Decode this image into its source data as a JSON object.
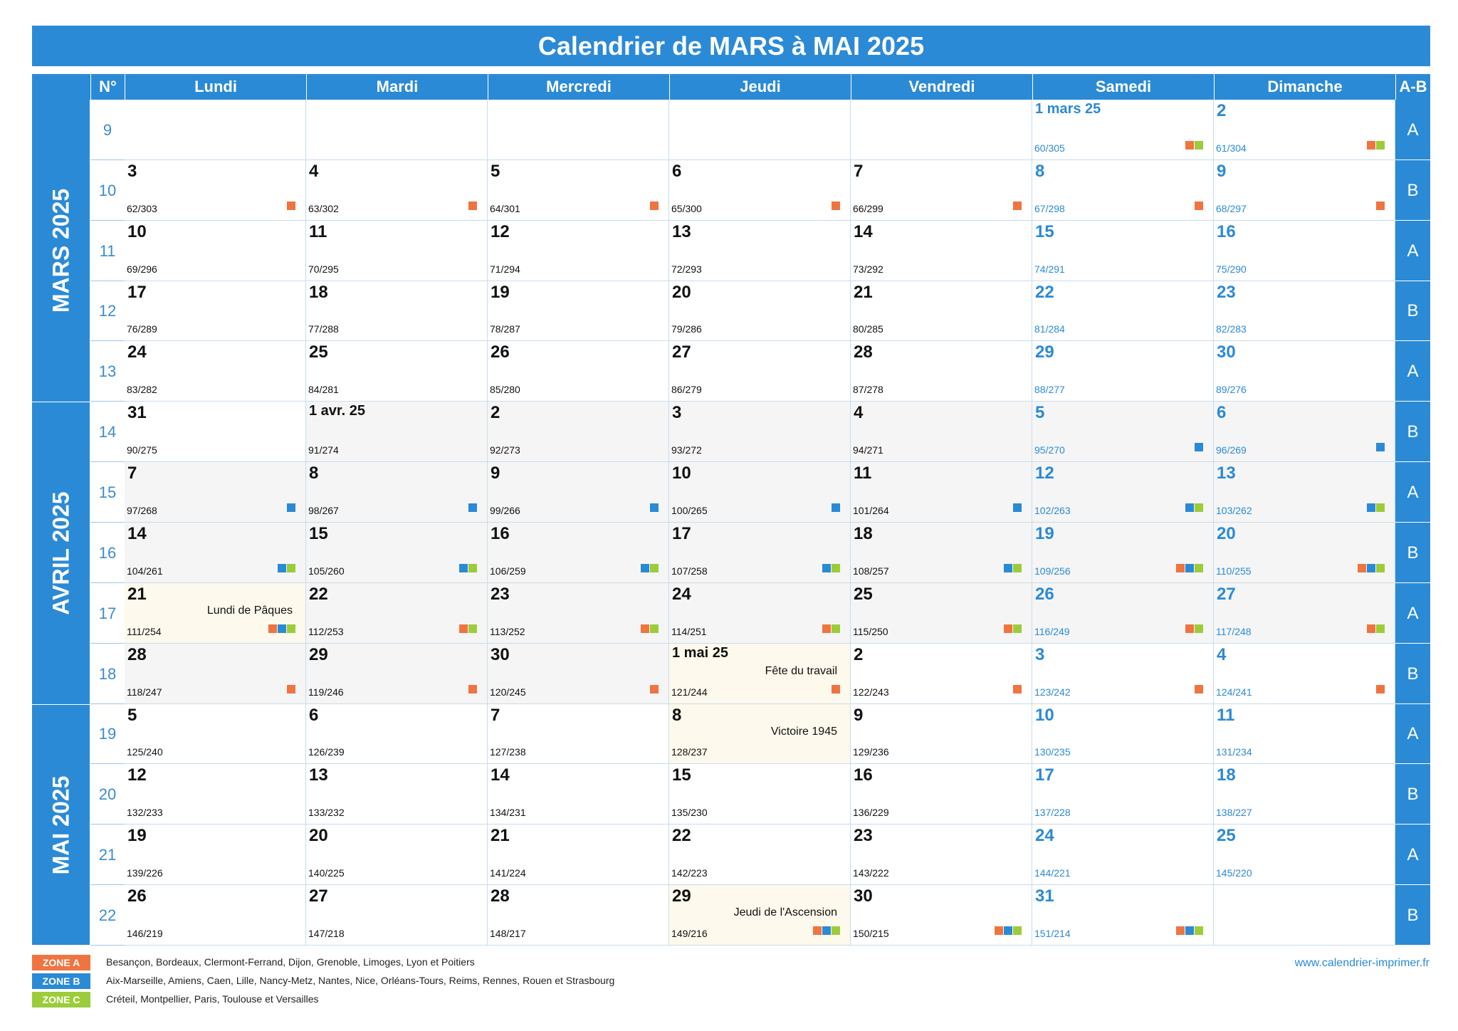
{
  "title": "Calendrier de MARS à MAI 2025",
  "headers": {
    "week": "N°",
    "days": [
      "Lundi",
      "Mardi",
      "Mercredi",
      "Jeudi",
      "Vendredi",
      "Samedi",
      "Dimanche"
    ],
    "ab": "A-B"
  },
  "months": [
    "MARS 2025",
    "AVRIL 2025",
    "MAI 2025"
  ],
  "colors": {
    "accent": "#2b8ad6",
    "zone_a": "#ef7440",
    "zone_b": "#2b8ad6",
    "zone_c": "#9ccc3a",
    "april_bg": "#f5f5f5",
    "holiday_bg": "#fdf9ec"
  },
  "weeks": [
    {
      "num": "9",
      "ab": "A",
      "month": 0,
      "days": [
        null,
        null,
        null,
        null,
        null,
        {
          "label": "1 mars 25",
          "count": "60/305",
          "zones": "AC",
          "first": true
        },
        {
          "label": "2",
          "count": "61/304",
          "zones": "AC"
        }
      ]
    },
    {
      "num": "10",
      "ab": "B",
      "month": 0,
      "days": [
        {
          "label": "3",
          "count": "62/303",
          "zones": "A"
        },
        {
          "label": "4",
          "count": "63/302",
          "zones": "A"
        },
        {
          "label": "5",
          "count": "64/301",
          "zones": "A"
        },
        {
          "label": "6",
          "count": "65/300",
          "zones": "A"
        },
        {
          "label": "7",
          "count": "66/299",
          "zones": "A"
        },
        {
          "label": "8",
          "count": "67/298",
          "zones": "A"
        },
        {
          "label": "9",
          "count": "68/297",
          "zones": "A"
        }
      ]
    },
    {
      "num": "11",
      "ab": "A",
      "month": 0,
      "days": [
        {
          "label": "10",
          "count": "69/296"
        },
        {
          "label": "11",
          "count": "70/295"
        },
        {
          "label": "12",
          "count": "71/294"
        },
        {
          "label": "13",
          "count": "72/293"
        },
        {
          "label": "14",
          "count": "73/292"
        },
        {
          "label": "15",
          "count": "74/291"
        },
        {
          "label": "16",
          "count": "75/290"
        }
      ]
    },
    {
      "num": "12",
      "ab": "B",
      "month": 0,
      "days": [
        {
          "label": "17",
          "count": "76/289"
        },
        {
          "label": "18",
          "count": "77/288"
        },
        {
          "label": "19",
          "count": "78/287"
        },
        {
          "label": "20",
          "count": "79/286"
        },
        {
          "label": "21",
          "count": "80/285"
        },
        {
          "label": "22",
          "count": "81/284"
        },
        {
          "label": "23",
          "count": "82/283"
        }
      ]
    },
    {
      "num": "13",
      "ab": "A",
      "month": 0,
      "days": [
        {
          "label": "24",
          "count": "83/282"
        },
        {
          "label": "25",
          "count": "84/281"
        },
        {
          "label": "26",
          "count": "85/280"
        },
        {
          "label": "27",
          "count": "86/279"
        },
        {
          "label": "28",
          "count": "87/278"
        },
        {
          "label": "29",
          "count": "88/277"
        },
        {
          "label": "30",
          "count": "89/276"
        }
      ]
    },
    {
      "num": "14",
      "ab": "B",
      "month": 1,
      "days": [
        {
          "label": "31",
          "count": "90/275",
          "march": true
        },
        {
          "label": "1 avr. 25",
          "count": "91/274",
          "first": true
        },
        {
          "label": "2",
          "count": "92/273"
        },
        {
          "label": "3",
          "count": "93/272"
        },
        {
          "label": "4",
          "count": "94/271"
        },
        {
          "label": "5",
          "count": "95/270",
          "zones": "B"
        },
        {
          "label": "6",
          "count": "96/269",
          "zones": "B"
        }
      ]
    },
    {
      "num": "15",
      "ab": "A",
      "month": 1,
      "days": [
        {
          "label": "7",
          "count": "97/268",
          "zones": "B"
        },
        {
          "label": "8",
          "count": "98/267",
          "zones": "B"
        },
        {
          "label": "9",
          "count": "99/266",
          "zones": "B"
        },
        {
          "label": "10",
          "count": "100/265",
          "zones": "B"
        },
        {
          "label": "11",
          "count": "101/264",
          "zones": "B"
        },
        {
          "label": "12",
          "count": "102/263",
          "zones": "BC"
        },
        {
          "label": "13",
          "count": "103/262",
          "zones": "BC"
        }
      ]
    },
    {
      "num": "16",
      "ab": "B",
      "month": 1,
      "days": [
        {
          "label": "14",
          "count": "104/261",
          "zones": "BC"
        },
        {
          "label": "15",
          "count": "105/260",
          "zones": "BC"
        },
        {
          "label": "16",
          "count": "106/259",
          "zones": "BC"
        },
        {
          "label": "17",
          "count": "107/258",
          "zones": "BC"
        },
        {
          "label": "18",
          "count": "108/257",
          "zones": "BC"
        },
        {
          "label": "19",
          "count": "109/256",
          "zones": "ABC"
        },
        {
          "label": "20",
          "count": "110/255",
          "zones": "ABC"
        }
      ]
    },
    {
      "num": "17",
      "ab": "A",
      "month": 1,
      "days": [
        {
          "label": "21",
          "count": "111/254",
          "zones": "ABC",
          "holiday": "Lundi de Pâques"
        },
        {
          "label": "22",
          "count": "112/253",
          "zones": "AC"
        },
        {
          "label": "23",
          "count": "113/252",
          "zones": "AC"
        },
        {
          "label": "24",
          "count": "114/251",
          "zones": "AC"
        },
        {
          "label": "25",
          "count": "115/250",
          "zones": "AC"
        },
        {
          "label": "26",
          "count": "116/249",
          "zones": "AC"
        },
        {
          "label": "27",
          "count": "117/248",
          "zones": "AC"
        }
      ]
    },
    {
      "num": "18",
      "ab": "B",
      "month": 1,
      "days": [
        {
          "label": "28",
          "count": "118/247",
          "zones": "A"
        },
        {
          "label": "29",
          "count": "119/246",
          "zones": "A"
        },
        {
          "label": "30",
          "count": "120/245",
          "zones": "A"
        },
        {
          "label": "1 mai 25",
          "count": "121/244",
          "zones": "A",
          "holiday": "Fête du travail",
          "first": true,
          "may": true
        },
        {
          "label": "2",
          "count": "122/243",
          "zones": "A",
          "may": true
        },
        {
          "label": "3",
          "count": "123/242",
          "zones": "A",
          "may": true
        },
        {
          "label": "4",
          "count": "124/241",
          "zones": "A",
          "may": true
        }
      ]
    },
    {
      "num": "19",
      "ab": "A",
      "month": 2,
      "days": [
        {
          "label": "5",
          "count": "125/240"
        },
        {
          "label": "6",
          "count": "126/239"
        },
        {
          "label": "7",
          "count": "127/238"
        },
        {
          "label": "8",
          "count": "128/237",
          "holiday": "Victoire 1945"
        },
        {
          "label": "9",
          "count": "129/236"
        },
        {
          "label": "10",
          "count": "130/235"
        },
        {
          "label": "11",
          "count": "131/234"
        }
      ]
    },
    {
      "num": "20",
      "ab": "B",
      "month": 2,
      "days": [
        {
          "label": "12",
          "count": "132/233"
        },
        {
          "label": "13",
          "count": "133/232"
        },
        {
          "label": "14",
          "count": "134/231"
        },
        {
          "label": "15",
          "count": "135/230"
        },
        {
          "label": "16",
          "count": "136/229"
        },
        {
          "label": "17",
          "count": "137/228"
        },
        {
          "label": "18",
          "count": "138/227"
        }
      ]
    },
    {
      "num": "21",
      "ab": "A",
      "month": 2,
      "days": [
        {
          "label": "19",
          "count": "139/226"
        },
        {
          "label": "20",
          "count": "140/225"
        },
        {
          "label": "21",
          "count": "141/224"
        },
        {
          "label": "22",
          "count": "142/223"
        },
        {
          "label": "23",
          "count": "143/222"
        },
        {
          "label": "24",
          "count": "144/221"
        },
        {
          "label": "25",
          "count": "145/220"
        }
      ]
    },
    {
      "num": "22",
      "ab": "B",
      "month": 2,
      "days": [
        {
          "label": "26",
          "count": "146/219"
        },
        {
          "label": "27",
          "count": "147/218"
        },
        {
          "label": "28",
          "count": "148/217"
        },
        {
          "label": "29",
          "count": "149/216",
          "zones": "ABC",
          "holiday": "Jeudi de l'Ascension"
        },
        {
          "label": "30",
          "count": "150/215",
          "zones": "ABC"
        },
        {
          "label": "31",
          "count": "151/214",
          "zones": "ABC"
        },
        null
      ]
    }
  ],
  "legend": [
    {
      "zone": "ZONE A",
      "color": "#ef7440",
      "cities": "Besançon, Bordeaux, Clermont-Ferrand, Dijon, Grenoble, Limoges, Lyon et Poitiers"
    },
    {
      "zone": "ZONE B",
      "color": "#2b8ad6",
      "cities": "Aix-Marseille, Amiens, Caen, Lille, Nancy-Metz, Nantes, Nice, Orléans-Tours, Reims, Rennes, Rouen et Strasbourg"
    },
    {
      "zone": "ZONE C",
      "color": "#9ccc3a",
      "cities": "Créteil, Montpellier, Paris, Toulouse et Versailles"
    }
  ],
  "website": "www.calendrier-imprimer.fr"
}
